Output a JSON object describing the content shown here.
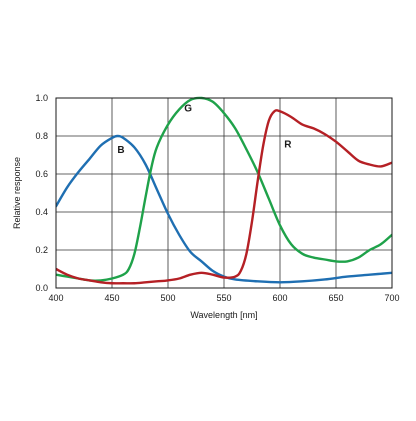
{
  "chart_data": {
    "type": "line",
    "xlabel": "Wavelength [nm]",
    "ylabel": "Relative response",
    "xlim": [
      400,
      700
    ],
    "ylim": [
      0,
      1.0
    ],
    "x_ticks": [
      400,
      450,
      500,
      550,
      600,
      650,
      700
    ],
    "x_tick_labels": [
      "400",
      "450",
      "500",
      "550",
      "600",
      "650",
      "700"
    ],
    "y_ticks": [
      0,
      0.2,
      0.4,
      0.6,
      0.8,
      1.0
    ],
    "y_tick_labels": [
      "0.0",
      "0.2",
      "0.4",
      "0.6",
      "0.8",
      "1.0"
    ],
    "grid": true,
    "series": [
      {
        "name": "B",
        "color": "#1f6fb2",
        "x": [
          400,
          410,
          420,
          430,
          440,
          450,
          455,
          460,
          470,
          480,
          490,
          500,
          510,
          520,
          530,
          540,
          550,
          560,
          580,
          600,
          620,
          640,
          660,
          680,
          700
        ],
        "y": [
          0.43,
          0.53,
          0.61,
          0.68,
          0.75,
          0.79,
          0.8,
          0.79,
          0.74,
          0.65,
          0.52,
          0.39,
          0.28,
          0.19,
          0.14,
          0.09,
          0.06,
          0.045,
          0.035,
          0.03,
          0.035,
          0.045,
          0.06,
          0.07,
          0.08
        ]
      },
      {
        "name": "G",
        "color": "#1fa24a",
        "x": [
          400,
          410,
          420,
          430,
          440,
          450,
          460,
          465,
          470,
          475,
          480,
          485,
          490,
          500,
          510,
          520,
          530,
          540,
          550,
          560,
          570,
          580,
          590,
          600,
          610,
          620,
          630,
          640,
          650,
          660,
          670,
          680,
          690,
          700
        ],
        "y": [
          0.07,
          0.06,
          0.05,
          0.04,
          0.04,
          0.05,
          0.07,
          0.1,
          0.18,
          0.32,
          0.48,
          0.63,
          0.74,
          0.86,
          0.94,
          0.99,
          1.0,
          0.98,
          0.92,
          0.84,
          0.73,
          0.61,
          0.47,
          0.33,
          0.23,
          0.18,
          0.16,
          0.15,
          0.14,
          0.14,
          0.16,
          0.2,
          0.23,
          0.28
        ]
      },
      {
        "name": "R",
        "color": "#b52025",
        "x": [
          400,
          410,
          420,
          430,
          440,
          450,
          460,
          470,
          480,
          490,
          500,
          510,
          520,
          530,
          540,
          550,
          560,
          565,
          570,
          575,
          580,
          585,
          590,
          595,
          600,
          610,
          620,
          630,
          640,
          650,
          660,
          670,
          680,
          690,
          700
        ],
        "y": [
          0.1,
          0.07,
          0.05,
          0.04,
          0.03,
          0.025,
          0.025,
          0.025,
          0.03,
          0.035,
          0.04,
          0.05,
          0.07,
          0.08,
          0.07,
          0.055,
          0.06,
          0.09,
          0.18,
          0.35,
          0.56,
          0.75,
          0.88,
          0.93,
          0.93,
          0.9,
          0.86,
          0.84,
          0.81,
          0.77,
          0.72,
          0.67,
          0.65,
          0.64,
          0.66
        ]
      }
    ],
    "series_labels": [
      {
        "text": "B",
        "x": 458,
        "y": 0.71
      },
      {
        "text": "G",
        "x": 518,
        "y": 0.93
      },
      {
        "text": "R",
        "x": 607,
        "y": 0.74
      }
    ]
  }
}
